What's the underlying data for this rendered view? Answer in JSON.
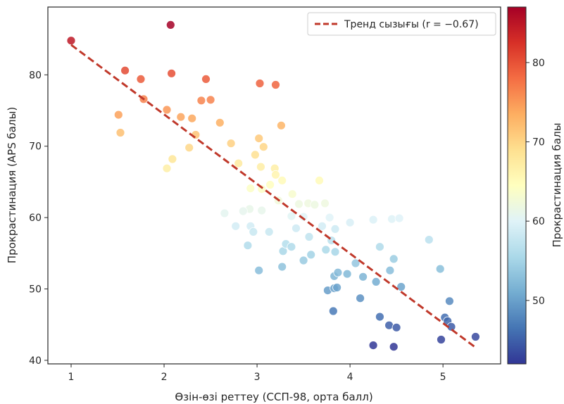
{
  "chart_data": {
    "type": "scatter",
    "title": "",
    "xlabel": "Өзін-өзі реттеу (ССП-98, орта балл)",
    "ylabel": "Прокрастинация (APS балы)",
    "xlim": [
      0.75,
      5.62
    ],
    "ylim": [
      39.5,
      89.5
    ],
    "x_ticks": [
      1,
      2,
      3,
      4,
      5
    ],
    "y_ticks": [
      40,
      50,
      60,
      70,
      80
    ],
    "grid": false,
    "legend": {
      "placement": "top-right",
      "entries": [
        "Тренд сызығы (r = −0.67)"
      ]
    },
    "colorbar": {
      "label": "Прокрастинация балы",
      "colormap": "RdYlBu_r",
      "range": [
        42,
        87
      ],
      "ticks": [
        50,
        60,
        70,
        80
      ]
    },
    "trend_line": {
      "color": "#c0392b",
      "style": "dashed",
      "points": [
        [
          1.0,
          84.2
        ],
        [
          5.35,
          41.8
        ]
      ]
    },
    "points": [
      {
        "x": 1.0,
        "y": 84.8
      },
      {
        "x": 2.07,
        "y": 87.0
      },
      {
        "x": 1.58,
        "y": 80.6
      },
      {
        "x": 1.75,
        "y": 79.4
      },
      {
        "x": 2.08,
        "y": 80.2
      },
      {
        "x": 2.45,
        "y": 79.4
      },
      {
        "x": 3.03,
        "y": 78.8
      },
      {
        "x": 3.2,
        "y": 78.6
      },
      {
        "x": 1.78,
        "y": 76.6
      },
      {
        "x": 2.4,
        "y": 76.4
      },
      {
        "x": 2.5,
        "y": 76.5
      },
      {
        "x": 2.03,
        "y": 75.1
      },
      {
        "x": 1.51,
        "y": 74.4
      },
      {
        "x": 2.18,
        "y": 74.1
      },
      {
        "x": 2.3,
        "y": 73.9
      },
      {
        "x": 2.6,
        "y": 73.3
      },
      {
        "x": 3.26,
        "y": 72.9
      },
      {
        "x": 1.53,
        "y": 71.9
      },
      {
        "x": 2.34,
        "y": 71.6
      },
      {
        "x": 3.02,
        "y": 71.1
      },
      {
        "x": 2.72,
        "y": 70.4
      },
      {
        "x": 2.27,
        "y": 69.8
      },
      {
        "x": 3.07,
        "y": 69.9
      },
      {
        "x": 2.98,
        "y": 68.8
      },
      {
        "x": 2.09,
        "y": 68.2
      },
      {
        "x": 2.8,
        "y": 67.6
      },
      {
        "x": 3.04,
        "y": 67.1
      },
      {
        "x": 3.19,
        "y": 66.9
      },
      {
        "x": 2.03,
        "y": 66.9
      },
      {
        "x": 3.2,
        "y": 66.0
      },
      {
        "x": 3.27,
        "y": 65.2
      },
      {
        "x": 3.67,
        "y": 65.2
      },
      {
        "x": 3.14,
        "y": 64.6
      },
      {
        "x": 2.93,
        "y": 64.1
      },
      {
        "x": 3.05,
        "y": 64.0
      },
      {
        "x": 3.38,
        "y": 63.3
      },
      {
        "x": 3.23,
        "y": 62.4
      },
      {
        "x": 3.55,
        "y": 62.0
      },
      {
        "x": 3.45,
        "y": 61.9
      },
      {
        "x": 3.62,
        "y": 61.8
      },
      {
        "x": 3.73,
        "y": 62.0
      },
      {
        "x": 2.92,
        "y": 61.2
      },
      {
        "x": 2.65,
        "y": 60.6
      },
      {
        "x": 2.85,
        "y": 60.9
      },
      {
        "x": 3.05,
        "y": 61.0
      },
      {
        "x": 3.37,
        "y": 60.2
      },
      {
        "x": 3.5,
        "y": 60.1
      },
      {
        "x": 3.78,
        "y": 60.0
      },
      {
        "x": 4.45,
        "y": 59.8
      },
      {
        "x": 4.25,
        "y": 59.7
      },
      {
        "x": 4.53,
        "y": 59.9
      },
      {
        "x": 4.0,
        "y": 59.3
      },
      {
        "x": 2.77,
        "y": 58.8
      },
      {
        "x": 2.93,
        "y": 58.8
      },
      {
        "x": 2.96,
        "y": 58.0
      },
      {
        "x": 3.13,
        "y": 58.0
      },
      {
        "x": 3.42,
        "y": 58.5
      },
      {
        "x": 3.7,
        "y": 58.8
      },
      {
        "x": 3.84,
        "y": 58.4
      },
      {
        "x": 3.56,
        "y": 57.3
      },
      {
        "x": 3.8,
        "y": 56.8
      },
      {
        "x": 4.32,
        "y": 55.9
      },
      {
        "x": 4.85,
        "y": 56.9
      },
      {
        "x": 2.9,
        "y": 56.1
      },
      {
        "x": 3.28,
        "y": 55.3
      },
      {
        "x": 3.31,
        "y": 56.3
      },
      {
        "x": 3.37,
        "y": 55.9
      },
      {
        "x": 3.58,
        "y": 54.8
      },
      {
        "x": 3.74,
        "y": 55.5
      },
      {
        "x": 3.84,
        "y": 55.2
      },
      {
        "x": 3.5,
        "y": 54.0
      },
      {
        "x": 4.06,
        "y": 53.6
      },
      {
        "x": 4.47,
        "y": 54.2
      },
      {
        "x": 3.02,
        "y": 52.6
      },
      {
        "x": 3.27,
        "y": 53.1
      },
      {
        "x": 3.83,
        "y": 51.8
      },
      {
        "x": 3.87,
        "y": 52.3
      },
      {
        "x": 3.97,
        "y": 52.1
      },
      {
        "x": 4.14,
        "y": 51.7
      },
      {
        "x": 4.43,
        "y": 52.6
      },
      {
        "x": 4.97,
        "y": 52.8
      },
      {
        "x": 4.28,
        "y": 51.0
      },
      {
        "x": 3.76,
        "y": 49.8
      },
      {
        "x": 3.83,
        "y": 50.1
      },
      {
        "x": 3.86,
        "y": 50.2
      },
      {
        "x": 4.55,
        "y": 50.3
      },
      {
        "x": 4.11,
        "y": 48.7
      },
      {
        "x": 5.07,
        "y": 48.3
      },
      {
        "x": 3.82,
        "y": 46.9
      },
      {
        "x": 4.32,
        "y": 46.1
      },
      {
        "x": 5.02,
        "y": 46.0
      },
      {
        "x": 5.05,
        "y": 45.5
      },
      {
        "x": 4.42,
        "y": 44.9
      },
      {
        "x": 4.5,
        "y": 44.6
      },
      {
        "x": 5.09,
        "y": 44.7
      },
      {
        "x": 5.35,
        "y": 43.3
      },
      {
        "x": 4.98,
        "y": 42.9
      },
      {
        "x": 4.25,
        "y": 42.1
      },
      {
        "x": 4.47,
        "y": 41.9
      }
    ]
  }
}
